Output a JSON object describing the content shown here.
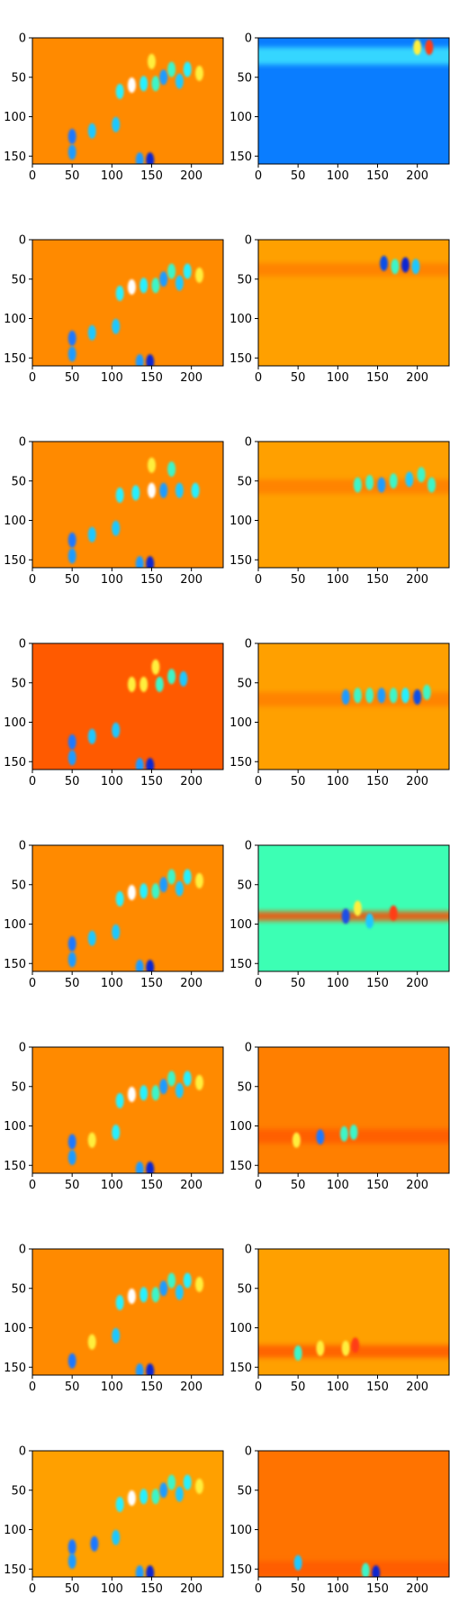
{
  "chart_data": {
    "type": "heatmap",
    "layout": {
      "rows": 8,
      "cols": 2
    },
    "colormap": "jet",
    "shared_axes": {
      "xlim": [
        0,
        240
      ],
      "ylim_inverted": [
        160,
        0
      ],
      "xticks": [
        0,
        50,
        100,
        150,
        200
      ],
      "yticks": [
        0,
        50,
        100,
        150
      ]
    },
    "panels": [
      {
        "row": 0,
        "col": 0,
        "background": "#ff8a00",
        "blobs": [
          [
            50,
            125,
            "#1e78ff"
          ],
          [
            50,
            145,
            "#1e9bff"
          ],
          [
            75,
            118,
            "#1ec8ff"
          ],
          [
            105,
            110,
            "#1ec8ff"
          ],
          [
            110,
            68,
            "#28f0ff"
          ],
          [
            125,
            60,
            "#ffffff"
          ],
          [
            140,
            58,
            "#28f0ff"
          ],
          [
            150,
            30,
            "#ffef3c"
          ],
          [
            155,
            58,
            "#3cf5c8"
          ],
          [
            165,
            50,
            "#1e9bff"
          ],
          [
            175,
            40,
            "#3cf5c8"
          ],
          [
            185,
            55,
            "#1ec8ff"
          ],
          [
            195,
            40,
            "#28f0ff"
          ],
          [
            210,
            45,
            "#ffef3c"
          ],
          [
            148,
            155,
            "#0c28d0"
          ],
          [
            135,
            155,
            "#1e9bff"
          ]
        ]
      },
      {
        "row": 0,
        "col": 1,
        "background": "#0a7dff",
        "band": {
          "y": 12,
          "h": 22,
          "color": "#3ce6ff"
        },
        "blobs": [
          [
            215,
            12,
            "#ff3c14"
          ],
          [
            200,
            12,
            "#ffef3c"
          ]
        ]
      },
      {
        "row": 1,
        "col": 0,
        "background": "#ff8a00",
        "blobs": [
          [
            50,
            125,
            "#1e78ff"
          ],
          [
            50,
            145,
            "#1e9bff"
          ],
          [
            75,
            118,
            "#1ec8ff"
          ],
          [
            105,
            110,
            "#1ec8ff"
          ],
          [
            110,
            68,
            "#28f0ff"
          ],
          [
            125,
            60,
            "#ffffff"
          ],
          [
            140,
            58,
            "#28f0ff"
          ],
          [
            155,
            58,
            "#3cf5c8"
          ],
          [
            165,
            50,
            "#1e9bff"
          ],
          [
            175,
            40,
            "#3cf5c8"
          ],
          [
            185,
            55,
            "#1ec8ff"
          ],
          [
            195,
            40,
            "#28f0ff"
          ],
          [
            210,
            45,
            "#ffef3c"
          ],
          [
            148,
            155,
            "#0c28d0"
          ],
          [
            135,
            155,
            "#1e9bff"
          ]
        ]
      },
      {
        "row": 1,
        "col": 1,
        "background": "#ffa000",
        "band": {
          "y": 30,
          "h": 16,
          "color": "#ff7f00"
        },
        "blobs": [
          [
            158,
            30,
            "#0c50e6"
          ],
          [
            172,
            34,
            "#3cf5c8"
          ],
          [
            185,
            32,
            "#0c28d0"
          ],
          [
            198,
            34,
            "#1ec8ff"
          ]
        ]
      },
      {
        "row": 2,
        "col": 0,
        "background": "#ff8a00",
        "blobs": [
          [
            50,
            125,
            "#1e78ff"
          ],
          [
            50,
            145,
            "#1e9bff"
          ],
          [
            75,
            118,
            "#1ec8ff"
          ],
          [
            105,
            110,
            "#1ec8ff"
          ],
          [
            110,
            68,
            "#28f0ff"
          ],
          [
            130,
            65,
            "#28f0ff"
          ],
          [
            150,
            62,
            "#ffffff"
          ],
          [
            165,
            62,
            "#1e9bff"
          ],
          [
            185,
            62,
            "#1ec8ff"
          ],
          [
            205,
            62,
            "#28f0ff"
          ],
          [
            150,
            30,
            "#ffef3c"
          ],
          [
            175,
            35,
            "#3cf5c8"
          ],
          [
            148,
            155,
            "#0c28d0"
          ],
          [
            135,
            155,
            "#1e9bff"
          ]
        ]
      },
      {
        "row": 2,
        "col": 1,
        "background": "#ffa000",
        "band": {
          "y": 48,
          "h": 18,
          "color": "#ff7f00"
        },
        "blobs": [
          [
            125,
            55,
            "#3cf5c8"
          ],
          [
            140,
            52,
            "#3cf5c8"
          ],
          [
            155,
            55,
            "#1e9bff"
          ],
          [
            170,
            50,
            "#3cf5c8"
          ],
          [
            190,
            48,
            "#1ec8ff"
          ],
          [
            205,
            42,
            "#3cf5c8"
          ],
          [
            218,
            55,
            "#3cf5c8"
          ]
        ]
      },
      {
        "row": 3,
        "col": 0,
        "background": "#ff5a00",
        "blobs": [
          [
            50,
            125,
            "#1e78ff"
          ],
          [
            50,
            145,
            "#1e9bff"
          ],
          [
            75,
            118,
            "#1ec8ff"
          ],
          [
            105,
            110,
            "#1ec8ff"
          ],
          [
            125,
            52,
            "#ffef3c"
          ],
          [
            140,
            52,
            "#ffef3c"
          ],
          [
            160,
            52,
            "#3cf5c8"
          ],
          [
            175,
            42,
            "#3cf5c8"
          ],
          [
            190,
            45,
            "#1ec8ff"
          ],
          [
            155,
            30,
            "#ffef3c"
          ],
          [
            148,
            155,
            "#0c28d0"
          ],
          [
            135,
            155,
            "#1e9bff"
          ]
        ]
      },
      {
        "row": 3,
        "col": 1,
        "background": "#ffa000",
        "band": {
          "y": 62,
          "h": 18,
          "color": "#ff7f00"
        },
        "blobs": [
          [
            110,
            68,
            "#1e9bff"
          ],
          [
            125,
            66,
            "#3cf5c8"
          ],
          [
            140,
            66,
            "#3cf5c8"
          ],
          [
            155,
            66,
            "#1e9bff"
          ],
          [
            170,
            66,
            "#3cf5c8"
          ],
          [
            185,
            66,
            "#28f0ff"
          ],
          [
            200,
            68,
            "#0c50e6"
          ],
          [
            212,
            62,
            "#3cf5c8"
          ]
        ]
      },
      {
        "row": 4,
        "col": 0,
        "background": "#ff8a00",
        "blobs": [
          [
            50,
            125,
            "#1e78ff"
          ],
          [
            50,
            145,
            "#1e9bff"
          ],
          [
            75,
            118,
            "#1ec8ff"
          ],
          [
            105,
            110,
            "#1ec8ff"
          ],
          [
            110,
            68,
            "#28f0ff"
          ],
          [
            125,
            60,
            "#ffffff"
          ],
          [
            140,
            58,
            "#28f0ff"
          ],
          [
            155,
            58,
            "#3cf5c8"
          ],
          [
            165,
            50,
            "#1e9bff"
          ],
          [
            175,
            40,
            "#3cf5c8"
          ],
          [
            185,
            55,
            "#1ec8ff"
          ],
          [
            195,
            40,
            "#28f0ff"
          ],
          [
            210,
            45,
            "#ffef3c"
          ],
          [
            148,
            155,
            "#0c28d0"
          ],
          [
            135,
            155,
            "#1e9bff"
          ]
        ]
      },
      {
        "row": 4,
        "col": 1,
        "background": "#3cffb4",
        "band": {
          "y": 84,
          "h": 12,
          "color": "#ff4a00"
        },
        "blobs": [
          [
            110,
            90,
            "#1e50e6"
          ],
          [
            125,
            80,
            "#ffef3c"
          ],
          [
            140,
            96,
            "#1ec8ff"
          ],
          [
            170,
            86,
            "#ff3c14"
          ]
        ]
      },
      {
        "row": 5,
        "col": 0,
        "background": "#ff8a00",
        "blobs": [
          [
            50,
            120,
            "#1e78ff"
          ],
          [
            50,
            140,
            "#1e9bff"
          ],
          [
            75,
            118,
            "#ffef3c"
          ],
          [
            105,
            108,
            "#28f0ff"
          ],
          [
            110,
            68,
            "#28f0ff"
          ],
          [
            125,
            60,
            "#ffffff"
          ],
          [
            140,
            58,
            "#28f0ff"
          ],
          [
            155,
            58,
            "#3cf5c8"
          ],
          [
            165,
            50,
            "#1e9bff"
          ],
          [
            175,
            40,
            "#3cf5c8"
          ],
          [
            185,
            55,
            "#1ec8ff"
          ],
          [
            195,
            40,
            "#28f0ff"
          ],
          [
            210,
            45,
            "#ffef3c"
          ],
          [
            148,
            155,
            "#0c28d0"
          ],
          [
            135,
            155,
            "#1e9bff"
          ]
        ]
      },
      {
        "row": 5,
        "col": 1,
        "background": "#ff7f00",
        "band": {
          "y": 104,
          "h": 18,
          "color": "#ff5a00"
        },
        "blobs": [
          [
            48,
            118,
            "#ffef3c"
          ],
          [
            78,
            114,
            "#1e78ff"
          ],
          [
            108,
            110,
            "#3cf5c8"
          ],
          [
            120,
            108,
            "#3cf5c8"
          ]
        ]
      },
      {
        "row": 6,
        "col": 0,
        "background": "#ff8a00",
        "blobs": [
          [
            50,
            142,
            "#1e78ff"
          ],
          [
            75,
            118,
            "#ffef3c"
          ],
          [
            105,
            110,
            "#1ec8ff"
          ],
          [
            110,
            68,
            "#28f0ff"
          ],
          [
            125,
            60,
            "#ffffff"
          ],
          [
            140,
            58,
            "#28f0ff"
          ],
          [
            155,
            58,
            "#3cf5c8"
          ],
          [
            165,
            50,
            "#1e9bff"
          ],
          [
            175,
            40,
            "#3cf5c8"
          ],
          [
            185,
            55,
            "#1ec8ff"
          ],
          [
            195,
            40,
            "#28f0ff"
          ],
          [
            210,
            45,
            "#ffef3c"
          ],
          [
            148,
            155,
            "#0c28d0"
          ],
          [
            135,
            155,
            "#1e9bff"
          ]
        ]
      },
      {
        "row": 6,
        "col": 1,
        "background": "#ffa000",
        "band": {
          "y": 122,
          "h": 16,
          "color": "#ff5a00"
        },
        "blobs": [
          [
            50,
            132,
            "#3cf5c8"
          ],
          [
            78,
            126,
            "#ffef3c"
          ],
          [
            110,
            126,
            "#ffef3c"
          ],
          [
            122,
            122,
            "#ff3c14"
          ]
        ]
      },
      {
        "row": 7,
        "col": 0,
        "background": "#ffa000",
        "blobs": [
          [
            50,
            122,
            "#1e78ff"
          ],
          [
            50,
            140,
            "#1e9bff"
          ],
          [
            78,
            118,
            "#1e78ff"
          ],
          [
            105,
            110,
            "#1ec8ff"
          ],
          [
            110,
            68,
            "#28f0ff"
          ],
          [
            125,
            60,
            "#ffffff"
          ],
          [
            140,
            58,
            "#28f0ff"
          ],
          [
            155,
            58,
            "#3cf5c8"
          ],
          [
            165,
            50,
            "#1e9bff"
          ],
          [
            175,
            40,
            "#3cf5c8"
          ],
          [
            185,
            55,
            "#1ec8ff"
          ],
          [
            195,
            40,
            "#28f0ff"
          ],
          [
            210,
            45,
            "#ffef3c"
          ],
          [
            148,
            155,
            "#0c28d0"
          ],
          [
            135,
            155,
            "#1e9bff"
          ]
        ]
      },
      {
        "row": 7,
        "col": 1,
        "background": "#ff7300",
        "band": {
          "y": 140,
          "h": 20,
          "color": "#ff5a00"
        },
        "blobs": [
          [
            50,
            142,
            "#1ec8ff"
          ],
          [
            135,
            152,
            "#3cf5c8"
          ],
          [
            148,
            155,
            "#0c28d0"
          ]
        ]
      }
    ]
  }
}
